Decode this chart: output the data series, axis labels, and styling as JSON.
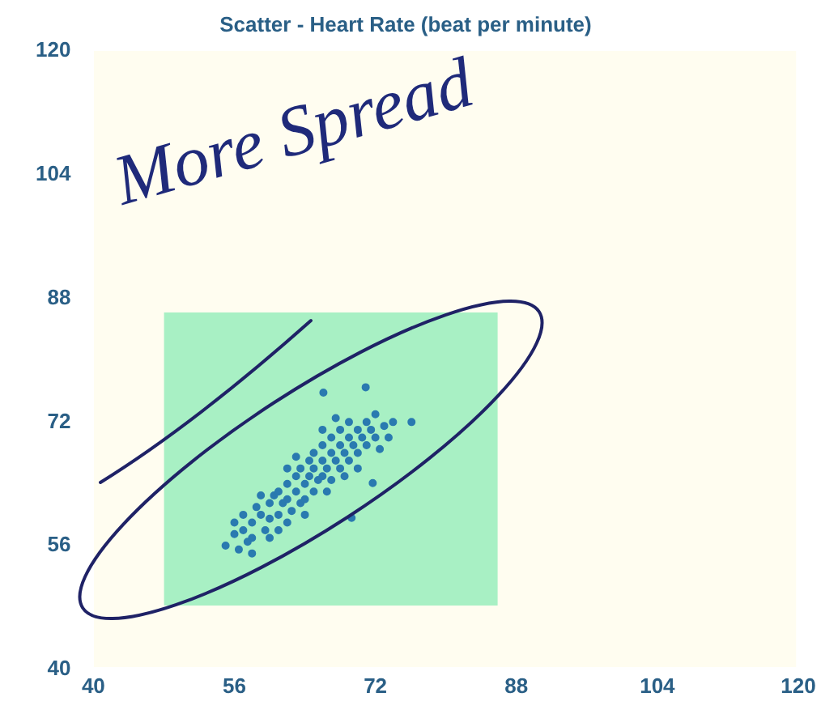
{
  "chart_data": {
    "type": "scatter",
    "title": "Scatter - Heart Rate (beat per minute)",
    "x": [
      55,
      56,
      56.5,
      57,
      57.5,
      58,
      58,
      59,
      58.5,
      59.5,
      60,
      60,
      60.5,
      61,
      61,
      61.5,
      62,
      62,
      62.5,
      63,
      63,
      63.5,
      63.5,
      64,
      64,
      64.5,
      64.5,
      65,
      65,
      65,
      65.5,
      66,
      66,
      66,
      66.5,
      66.5,
      67,
      67,
      67,
      67.5,
      68,
      68,
      68,
      68.5,
      68.5,
      69,
      69,
      69,
      69.5,
      70,
      70,
      70,
      70.5,
      71,
      71,
      71.5,
      72,
      72,
      72.5,
      73,
      73.5,
      74,
      61,
      59,
      57,
      62,
      63,
      60,
      64,
      66,
      67.5,
      66.1,
      70.9,
      76.1,
      69.3,
      71.7,
      56,
      58,
      62
    ],
    "series": [
      {
        "color": "#2a7ab0",
        "values": [
          56,
          57.5,
          55.5,
          58,
          56.5,
          59,
          57,
          60,
          61,
          58,
          61.5,
          59.5,
          62.5,
          60,
          63,
          61.5,
          64,
          62,
          60.5,
          65,
          63,
          61.5,
          66,
          64,
          62,
          67,
          65,
          63,
          66,
          68,
          64.5,
          67,
          65,
          69,
          63,
          66,
          68,
          70,
          64.5,
          67,
          69,
          66,
          71,
          65,
          68,
          70,
          67,
          72,
          69,
          71,
          68,
          66,
          70,
          72,
          69,
          71,
          70,
          73,
          68.5,
          71.5,
          70,
          72,
          58,
          62.5,
          60,
          66,
          67.5,
          57,
          60,
          71,
          72.5,
          75.8,
          76.5,
          72,
          59.6,
          64.1,
          59,
          55,
          59
        ]
      }
    ],
    "xlim": [
      40,
      120
    ],
    "ylim": [
      40,
      120
    ],
    "xticks": [
      40,
      56,
      72,
      88,
      104,
      120
    ],
    "yticks": [
      40,
      56,
      72,
      88,
      104,
      120
    ],
    "grid": false,
    "legend": false,
    "marker": "circle",
    "annotations": [
      "More Spread"
    ]
  }
}
